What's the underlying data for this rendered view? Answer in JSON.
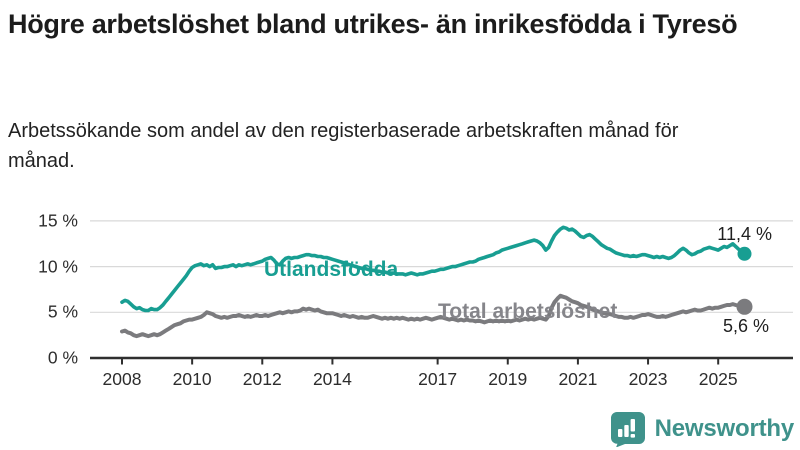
{
  "header": {
    "title": "Högre arbetslöshet bland utrikes- än inrikesfödda i Tyresö",
    "subtitle": "Arbetssökande som andel av den registerbaserade arbetskraften månad för månad."
  },
  "footer": {
    "brand_name": "Newsworthy",
    "logo_icon": "bar-chart-speech-bubble-icon",
    "brand_color": "#3f928b"
  },
  "colors": {
    "utlandsfodda_line": "#189e92",
    "total_line": "#7b7b7e",
    "total_label": "#85858a",
    "gridline": "#d9d9d9",
    "axis": "#2f2f2f",
    "end_label_text": "#1f1f1f"
  },
  "chart_data": {
    "type": "line",
    "title": "Högre arbetslöshet bland utrikes- än inrikesfödda i Tyresö",
    "subtitle": "Arbetssökande som andel av den registerbaserade arbetskraften månad för månad.",
    "frequency": "monthly",
    "x_start": "2008-01",
    "x_end": "2025-10",
    "ylim": [
      0,
      16.5
    ],
    "grid": true,
    "legend_position": "inline-labels",
    "x_ticks": [
      2008,
      2010,
      2012,
      2014,
      2017,
      2019,
      2021,
      2023,
      2025
    ],
    "x_tick_labels": [
      "2008",
      "2010",
      "2012",
      "2014",
      "2017",
      "2019",
      "2021",
      "2023",
      "2025"
    ],
    "y_ticks": [
      {
        "value": 15,
        "label": "15 %"
      },
      {
        "value": 10,
        "label": "10 %"
      },
      {
        "value": 5,
        "label": "5 %"
      },
      {
        "value": 0,
        "label": "0 %"
      }
    ],
    "series": [
      {
        "name": "Utlandsfödda",
        "color": "#189e92",
        "end_value": 11.4,
        "end_label": "11,4 %",
        "values": [
          6.1,
          6.3,
          6.2,
          5.9,
          5.6,
          5.4,
          5.5,
          5.3,
          5.2,
          5.2,
          5.4,
          5.3,
          5.3,
          5.5,
          5.8,
          6.2,
          6.6,
          7.0,
          7.4,
          7.8,
          8.2,
          8.6,
          9.0,
          9.5,
          9.9,
          10.1,
          10.2,
          10.3,
          10.1,
          10.2,
          10.0,
          10.2,
          9.8,
          9.9,
          9.9,
          10.0,
          10.0,
          10.1,
          10.2,
          10.0,
          10.2,
          10.1,
          10.2,
          10.3,
          10.2,
          10.3,
          10.4,
          10.5,
          10.6,
          10.8,
          10.9,
          11.0,
          10.7,
          10.3,
          10.2,
          10.6,
          10.9,
          11.0,
          10.9,
          11.0,
          11.0,
          11.1,
          11.2,
          11.3,
          11.3,
          11.2,
          11.2,
          11.1,
          11.1,
          11.0,
          11.0,
          10.9,
          10.8,
          10.7,
          10.6,
          10.5,
          10.4,
          10.3,
          10.2,
          10.1,
          10.0,
          9.9,
          9.8,
          9.8,
          9.7,
          9.6,
          9.6,
          9.5,
          9.5,
          9.4,
          9.4,
          9.3,
          9.3,
          9.3,
          9.2,
          9.2,
          9.2,
          9.1,
          9.2,
          9.3,
          9.2,
          9.1,
          9.2,
          9.2,
          9.3,
          9.4,
          9.5,
          9.5,
          9.6,
          9.7,
          9.7,
          9.8,
          9.9,
          10.0,
          10.0,
          10.1,
          10.2,
          10.3,
          10.4,
          10.5,
          10.5,
          10.6,
          10.8,
          10.9,
          11.0,
          11.1,
          11.2,
          11.3,
          11.5,
          11.6,
          11.8,
          11.9,
          12.0,
          12.1,
          12.2,
          12.3,
          12.4,
          12.5,
          12.6,
          12.7,
          12.8,
          12.9,
          12.8,
          12.6,
          12.3,
          11.8,
          12.1,
          12.8,
          13.4,
          13.8,
          14.1,
          14.3,
          14.2,
          14.0,
          14.1,
          13.9,
          13.6,
          13.3,
          13.2,
          13.4,
          13.5,
          13.3,
          13.0,
          12.7,
          12.4,
          12.2,
          12.0,
          11.9,
          11.7,
          11.5,
          11.4,
          11.3,
          11.2,
          11.2,
          11.1,
          11.2,
          11.1,
          11.2,
          11.3,
          11.3,
          11.2,
          11.1,
          11.0,
          11.1,
          11.0,
          11.1,
          11.0,
          10.9,
          11.0,
          11.2,
          11.5,
          11.8,
          12.0,
          11.8,
          11.5,
          11.3,
          11.4,
          11.6,
          11.7,
          11.9,
          12.0,
          12.1,
          12.0,
          11.9,
          11.8,
          12.0,
          12.2,
          12.1,
          12.3,
          12.5,
          12.2,
          11.9,
          11.6,
          11.4
        ]
      },
      {
        "name": "Total arbetslöshet",
        "color": "#7b7b7e",
        "end_value": 5.6,
        "end_label": "5,6 %",
        "values": [
          2.9,
          3.0,
          2.8,
          2.7,
          2.5,
          2.4,
          2.5,
          2.6,
          2.5,
          2.4,
          2.5,
          2.6,
          2.5,
          2.6,
          2.8,
          3.0,
          3.2,
          3.4,
          3.6,
          3.7,
          3.8,
          4.0,
          4.1,
          4.2,
          4.2,
          4.3,
          4.4,
          4.5,
          4.7,
          5.0,
          4.9,
          4.8,
          4.6,
          4.5,
          4.4,
          4.5,
          4.4,
          4.5,
          4.6,
          4.6,
          4.7,
          4.6,
          4.5,
          4.6,
          4.5,
          4.6,
          4.7,
          4.6,
          4.6,
          4.7,
          4.6,
          4.7,
          4.8,
          4.9,
          5.0,
          4.9,
          5.0,
          5.1,
          5.0,
          5.1,
          5.1,
          5.2,
          5.4,
          5.3,
          5.4,
          5.3,
          5.2,
          5.3,
          5.1,
          5.0,
          4.9,
          4.9,
          4.9,
          4.8,
          4.7,
          4.6,
          4.7,
          4.6,
          4.5,
          4.6,
          4.5,
          4.4,
          4.5,
          4.4,
          4.4,
          4.5,
          4.6,
          4.5,
          4.4,
          4.3,
          4.4,
          4.3,
          4.4,
          4.3,
          4.4,
          4.3,
          4.4,
          4.3,
          4.2,
          4.3,
          4.2,
          4.3,
          4.2,
          4.3,
          4.4,
          4.3,
          4.2,
          4.3,
          4.4,
          4.5,
          4.4,
          4.3,
          4.2,
          4.3,
          4.2,
          4.1,
          4.2,
          4.1,
          4.2,
          4.1,
          4.1,
          4.0,
          4.1,
          4.0,
          3.9,
          4.0,
          4.1,
          4.0,
          4.1,
          4.0,
          4.1,
          4.0,
          4.1,
          4.0,
          4.1,
          4.2,
          4.1,
          4.2,
          4.3,
          4.2,
          4.3,
          4.2,
          4.3,
          4.4,
          4.3,
          4.2,
          4.6,
          5.5,
          6.1,
          6.5,
          6.8,
          6.7,
          6.6,
          6.4,
          6.2,
          6.1,
          6.0,
          5.8,
          5.7,
          5.6,
          5.5,
          5.3,
          5.2,
          5.1,
          5.0,
          4.9,
          4.8,
          4.8,
          4.7,
          4.6,
          4.5,
          4.5,
          4.4,
          4.4,
          4.5,
          4.4,
          4.5,
          4.6,
          4.7,
          4.7,
          4.8,
          4.7,
          4.6,
          4.5,
          4.5,
          4.6,
          4.5,
          4.6,
          4.7,
          4.8,
          4.9,
          5.0,
          5.1,
          5.0,
          5.1,
          5.2,
          5.3,
          5.2,
          5.2,
          5.3,
          5.4,
          5.5,
          5.4,
          5.5,
          5.5,
          5.6,
          5.7,
          5.8,
          5.8,
          5.9,
          5.8,
          5.7,
          5.6,
          5.6
        ]
      }
    ]
  }
}
